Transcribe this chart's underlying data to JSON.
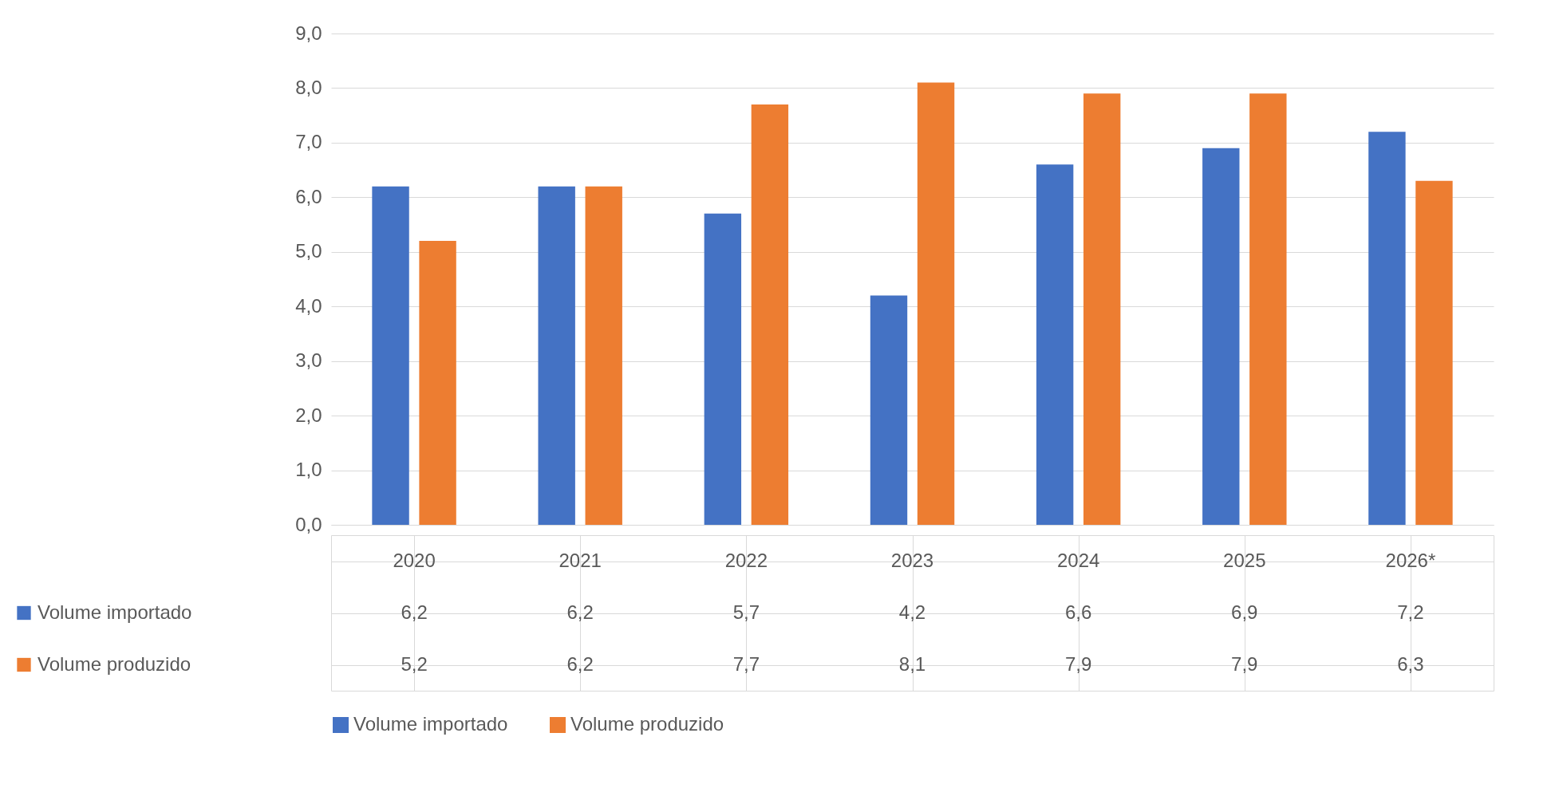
{
  "chart_data": {
    "type": "bar",
    "categories": [
      "2020",
      "2021",
      "2022",
      "2023",
      "2024",
      "2025",
      "2026*"
    ],
    "series": [
      {
        "name": "Volume importado",
        "color": "#4472c4",
        "values": [
          6.2,
          6.2,
          5.7,
          4.2,
          6.6,
          6.9,
          7.2
        ],
        "value_labels": [
          "6,2",
          "6,2",
          "5,7",
          "4,2",
          "6,6",
          "6,9",
          "7,2"
        ]
      },
      {
        "name": "Volume produzido",
        "color": "#ed7d31",
        "values": [
          5.2,
          6.2,
          7.7,
          8.1,
          7.9,
          7.9,
          6.3
        ],
        "value_labels": [
          "5,2",
          "6,2",
          "7,7",
          "8,1",
          "7,9",
          "7,9",
          "6,3"
        ]
      }
    ],
    "ylim": [
      0,
      9
    ],
    "yticks": [
      {
        "value": 0,
        "label": "0,0"
      },
      {
        "value": 1,
        "label": "1,0"
      },
      {
        "value": 2,
        "label": "2,0"
      },
      {
        "value": 3,
        "label": "3,0"
      },
      {
        "value": 4,
        "label": "4,0"
      },
      {
        "value": 5,
        "label": "5,0"
      },
      {
        "value": 6,
        "label": "6,0"
      },
      {
        "value": 7,
        "label": "7,0"
      },
      {
        "value": 8,
        "label": "8,0"
      },
      {
        "value": 9,
        "label": "9,0"
      }
    ],
    "grid": "y",
    "legend": "bottom"
  }
}
